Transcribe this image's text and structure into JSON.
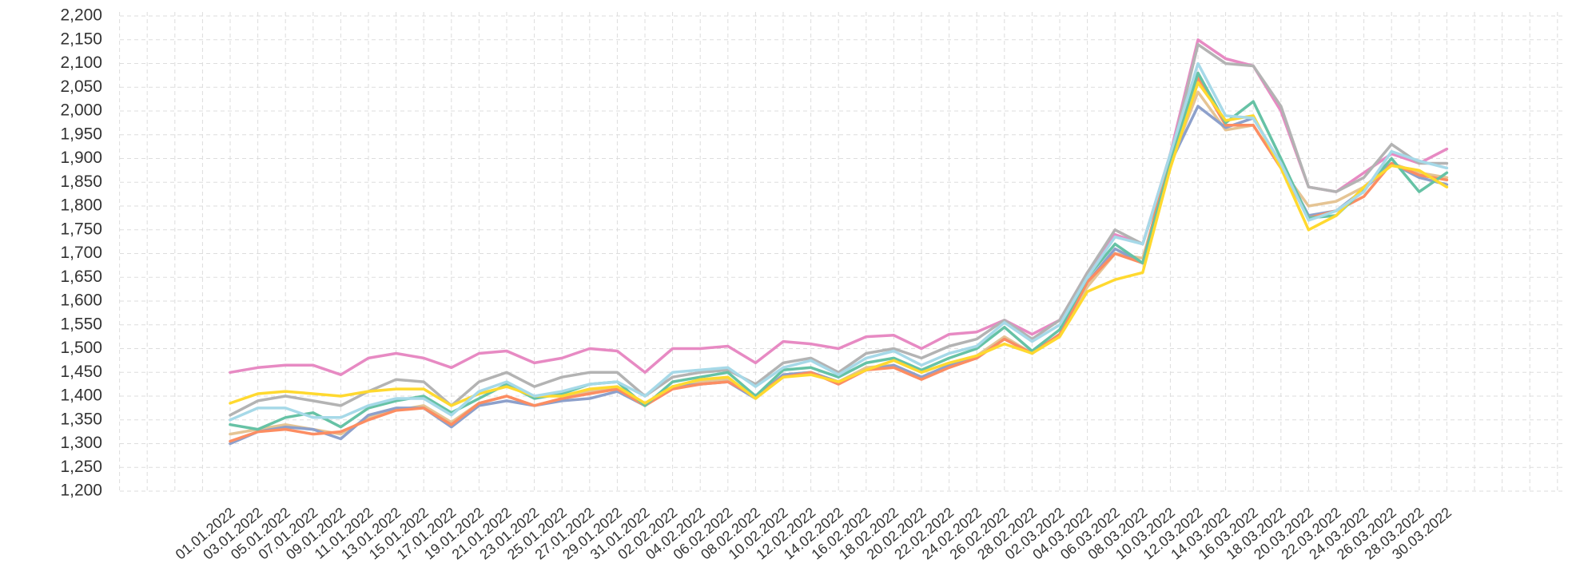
{
  "chart_data": {
    "type": "line",
    "categories": [
      "01.01.2022",
      "03.01.2022",
      "05.01.2022",
      "07.01.2022",
      "09.01.2022",
      "11.01.2022",
      "13.01.2022",
      "15.01.2022",
      "17.01.2022",
      "19.01.2022",
      "21.01.2022",
      "23.01.2022",
      "25.01.2022",
      "27.01.2022",
      "29.01.2022",
      "31.01.2022",
      "02.02.2022",
      "04.02.2022",
      "06.02.2022",
      "08.02.2022",
      "10.02.2022",
      "12.02.2022",
      "14.02.2022",
      "16.02.2022",
      "18.02.2022",
      "20.02.2022",
      "22.02.2022",
      "24.02.2022",
      "26.02.2022",
      "28.02.2022",
      "02.03.2022",
      "04.03.2022",
      "06.03.2022",
      "08.03.2022",
      "10.03.2022",
      "12.03.2022",
      "14.03.2022",
      "16.03.2022",
      "18.03.2022",
      "20.03.2022",
      "22.03.2022",
      "24.03.2022",
      "26.03.2022",
      "28.03.2022",
      "30.03.2022"
    ],
    "series": [
      {
        "color": "#e78ac3",
        "values": [
          1450,
          1460,
          1465,
          1465,
          1445,
          1480,
          1490,
          1480,
          1460,
          1490,
          1495,
          1470,
          1480,
          1500,
          1495,
          1450,
          1500,
          1500,
          1505,
          1470,
          1515,
          1510,
          1500,
          1525,
          1528,
          1500,
          1530,
          1535,
          1560,
          1530,
          1560,
          1660,
          1740,
          1720,
          1910,
          2150,
          2110,
          2095,
          2000,
          1840,
          1830,
          1870,
          1910,
          1890,
          1920
        ]
      },
      {
        "color": "#b3b3b3",
        "values": [
          1360,
          1390,
          1400,
          1390,
          1380,
          1410,
          1435,
          1430,
          1380,
          1430,
          1450,
          1420,
          1440,
          1450,
          1450,
          1400,
          1440,
          1450,
          1455,
          1425,
          1470,
          1480,
          1450,
          1490,
          1500,
          1480,
          1505,
          1520,
          1560,
          1520,
          1560,
          1660,
          1750,
          1720,
          1900,
          2140,
          2100,
          2095,
          2010,
          1840,
          1830,
          1860,
          1930,
          1890,
          1890
        ]
      },
      {
        "color": "#e5c494",
        "values": [
          1320,
          1330,
          1340,
          1330,
          1320,
          1355,
          1370,
          1380,
          1345,
          1385,
          1400,
          1380,
          1395,
          1410,
          1420,
          1380,
          1420,
          1430,
          1435,
          1400,
          1445,
          1450,
          1430,
          1460,
          1465,
          1440,
          1465,
          1485,
          1525,
          1490,
          1530,
          1630,
          1700,
          1690,
          1890,
          2040,
          1960,
          1970,
          1880,
          1800,
          1810,
          1840,
          1890,
          1870,
          1860
        ]
      },
      {
        "color": "#8da0cb",
        "values": [
          1300,
          1325,
          1335,
          1330,
          1310,
          1360,
          1375,
          1375,
          1335,
          1380,
          1390,
          1380,
          1390,
          1395,
          1410,
          1380,
          1420,
          1425,
          1430,
          1395,
          1445,
          1450,
          1430,
          1455,
          1465,
          1440,
          1465,
          1480,
          1520,
          1490,
          1530,
          1640,
          1710,
          1680,
          1890,
          2010,
          1965,
          1985,
          1890,
          1780,
          1790,
          1835,
          1890,
          1860,
          1845
        ]
      },
      {
        "color": "#fc8d62",
        "values": [
          1305,
          1325,
          1330,
          1320,
          1325,
          1350,
          1370,
          1375,
          1340,
          1385,
          1400,
          1380,
          1395,
          1405,
          1415,
          1380,
          1415,
          1425,
          1430,
          1400,
          1440,
          1450,
          1425,
          1455,
          1460,
          1435,
          1460,
          1480,
          1520,
          1490,
          1530,
          1640,
          1700,
          1680,
          1910,
          2070,
          1970,
          1970,
          1880,
          1775,
          1790,
          1820,
          1890,
          1865,
          1855
        ]
      },
      {
        "color": "#66c2a5",
        "values": [
          1340,
          1330,
          1355,
          1365,
          1335,
          1375,
          1390,
          1400,
          1365,
          1395,
          1425,
          1395,
          1405,
          1425,
          1430,
          1380,
          1430,
          1440,
          1450,
          1400,
          1455,
          1460,
          1440,
          1470,
          1480,
          1455,
          1480,
          1500,
          1545,
          1495,
          1540,
          1650,
          1720,
          1680,
          1890,
          2080,
          1975,
          2020,
          1900,
          1775,
          1780,
          1835,
          1900,
          1830,
          1870
        ]
      },
      {
        "color": "#ffd92f",
        "values": [
          1385,
          1405,
          1410,
          1405,
          1400,
          1410,
          1415,
          1415,
          1380,
          1405,
          1420,
          1400,
          1400,
          1415,
          1420,
          1385,
          1420,
          1435,
          1440,
          1395,
          1440,
          1445,
          1430,
          1455,
          1475,
          1450,
          1470,
          1485,
          1510,
          1490,
          1525,
          1620,
          1645,
          1660,
          1880,
          2060,
          1980,
          1990,
          1880,
          1750,
          1780,
          1840,
          1885,
          1875,
          1840
        ]
      },
      {
        "color": "#a6d9e8",
        "values": [
          1350,
          1375,
          1375,
          1355,
          1355,
          1380,
          1395,
          1395,
          1360,
          1410,
          1430,
          1400,
          1410,
          1425,
          1430,
          1400,
          1450,
          1455,
          1460,
          1420,
          1460,
          1475,
          1445,
          1480,
          1495,
          1465,
          1490,
          1505,
          1555,
          1515,
          1550,
          1650,
          1735,
          1720,
          1910,
          2100,
          1990,
          1985,
          1890,
          1770,
          1790,
          1830,
          1915,
          1895,
          1880
        ]
      }
    ],
    "ylim": [
      1200,
      2200
    ],
    "yticks": [
      {
        "value": 1200,
        "label": "1,200"
      },
      {
        "value": 1250,
        "label": "1,250"
      },
      {
        "value": 1300,
        "label": "1,300"
      },
      {
        "value": 1350,
        "label": "1,350"
      },
      {
        "value": 1400,
        "label": "1,400"
      },
      {
        "value": 1450,
        "label": "1,450"
      },
      {
        "value": 1500,
        "label": "1,500"
      },
      {
        "value": 1550,
        "label": "1,550"
      },
      {
        "value": 1600,
        "label": "1,600"
      },
      {
        "value": 1650,
        "label": "1,650"
      },
      {
        "value": 1700,
        "label": "1,700"
      },
      {
        "value": 1750,
        "label": "1,750"
      },
      {
        "value": 1800,
        "label": "1,800"
      },
      {
        "value": 1850,
        "label": "1,850"
      },
      {
        "value": 1900,
        "label": "1,900"
      },
      {
        "value": 1950,
        "label": "1,950"
      },
      {
        "value": 2000,
        "label": "2,000"
      },
      {
        "value": 2050,
        "label": "2,050"
      },
      {
        "value": 2100,
        "label": "2,100"
      },
      {
        "value": 2150,
        "label": "2,150"
      },
      {
        "value": 2200,
        "label": "2,200"
      }
    ],
    "grid": true
  }
}
